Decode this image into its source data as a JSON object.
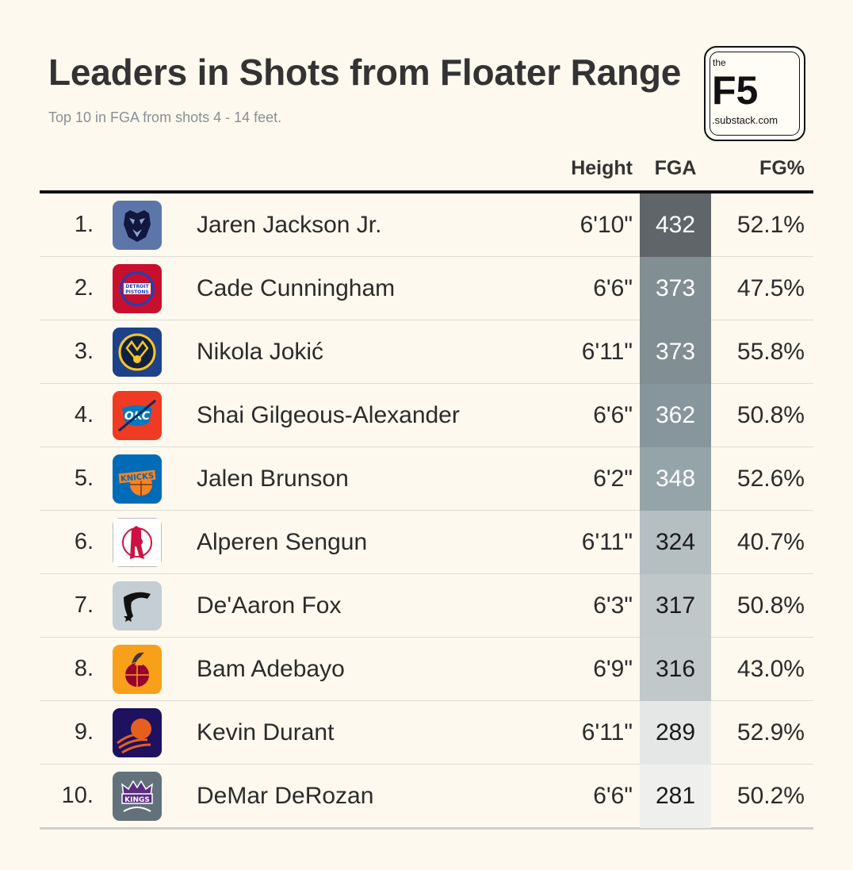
{
  "title": "Leaders in Shots from Floater Range",
  "subtitle": "Top 10 in FGA from shots 4 - 14 feet.",
  "logo": {
    "the": "the",
    "brand": "F5",
    "domain": ".substack.com"
  },
  "chart_data": {
    "type": "table",
    "title": "Leaders in Shots from Floater Range",
    "subtitle": "Top 10 in FGA from shots 4 - 14 feet.",
    "columns": [
      "Height",
      "FGA",
      "FG%"
    ],
    "rows": [
      {
        "rank": "1.",
        "name": "Jaren Jackson Jr.",
        "team_logo": "grizzlies-logo-icon",
        "height": "6'10\"",
        "fga": 432,
        "fga_text": "432",
        "fg_pct": "52.1%"
      },
      {
        "rank": "2.",
        "name": "Cade Cunningham",
        "team_logo": "pistons-logo-icon",
        "height": "6'6\"",
        "fga": 373,
        "fga_text": "373",
        "fg_pct": "47.5%"
      },
      {
        "rank": "3.",
        "name": "Nikola Jokić",
        "team_logo": "nuggets-logo-icon",
        "height": "6'11\"",
        "fga": 373,
        "fga_text": "373",
        "fg_pct": "55.8%"
      },
      {
        "rank": "4.",
        "name": "Shai Gilgeous-Alexander",
        "team_logo": "thunder-logo-icon",
        "height": "6'6\"",
        "fga": 362,
        "fga_text": "362",
        "fg_pct": "50.8%"
      },
      {
        "rank": "5.",
        "name": "Jalen Brunson",
        "team_logo": "knicks-logo-icon",
        "height": "6'2\"",
        "fga": 348,
        "fga_text": "348",
        "fg_pct": "52.6%"
      },
      {
        "rank": "6.",
        "name": "Alperen Sengun",
        "team_logo": "rockets-logo-icon",
        "height": "6'11\"",
        "fga": 324,
        "fga_text": "324",
        "fg_pct": "40.7%"
      },
      {
        "rank": "7.",
        "name": "De'Aaron Fox",
        "team_logo": "spurs-logo-icon",
        "height": "6'3\"",
        "fga": 317,
        "fga_text": "317",
        "fg_pct": "50.8%"
      },
      {
        "rank": "8.",
        "name": "Bam Adebayo",
        "team_logo": "heat-logo-icon",
        "height": "6'9\"",
        "fga": 316,
        "fga_text": "316",
        "fg_pct": "43.0%"
      },
      {
        "rank": "9.",
        "name": "Kevin Durant",
        "team_logo": "suns-logo-icon",
        "height": "6'11\"",
        "fga": 289,
        "fga_text": "289",
        "fg_pct": "52.9%"
      },
      {
        "rank": "10.",
        "name": "DeMar DeRozan",
        "team_logo": "kings-logo-icon",
        "height": "6'6\"",
        "fga": 281,
        "fga_text": "281",
        "fg_pct": "50.2%"
      }
    ],
    "fga_color_scale": {
      "min": 281,
      "max": 432,
      "light": "#eff0ee",
      "mid": "#8a9aa0",
      "dark": "#5f6568"
    }
  }
}
